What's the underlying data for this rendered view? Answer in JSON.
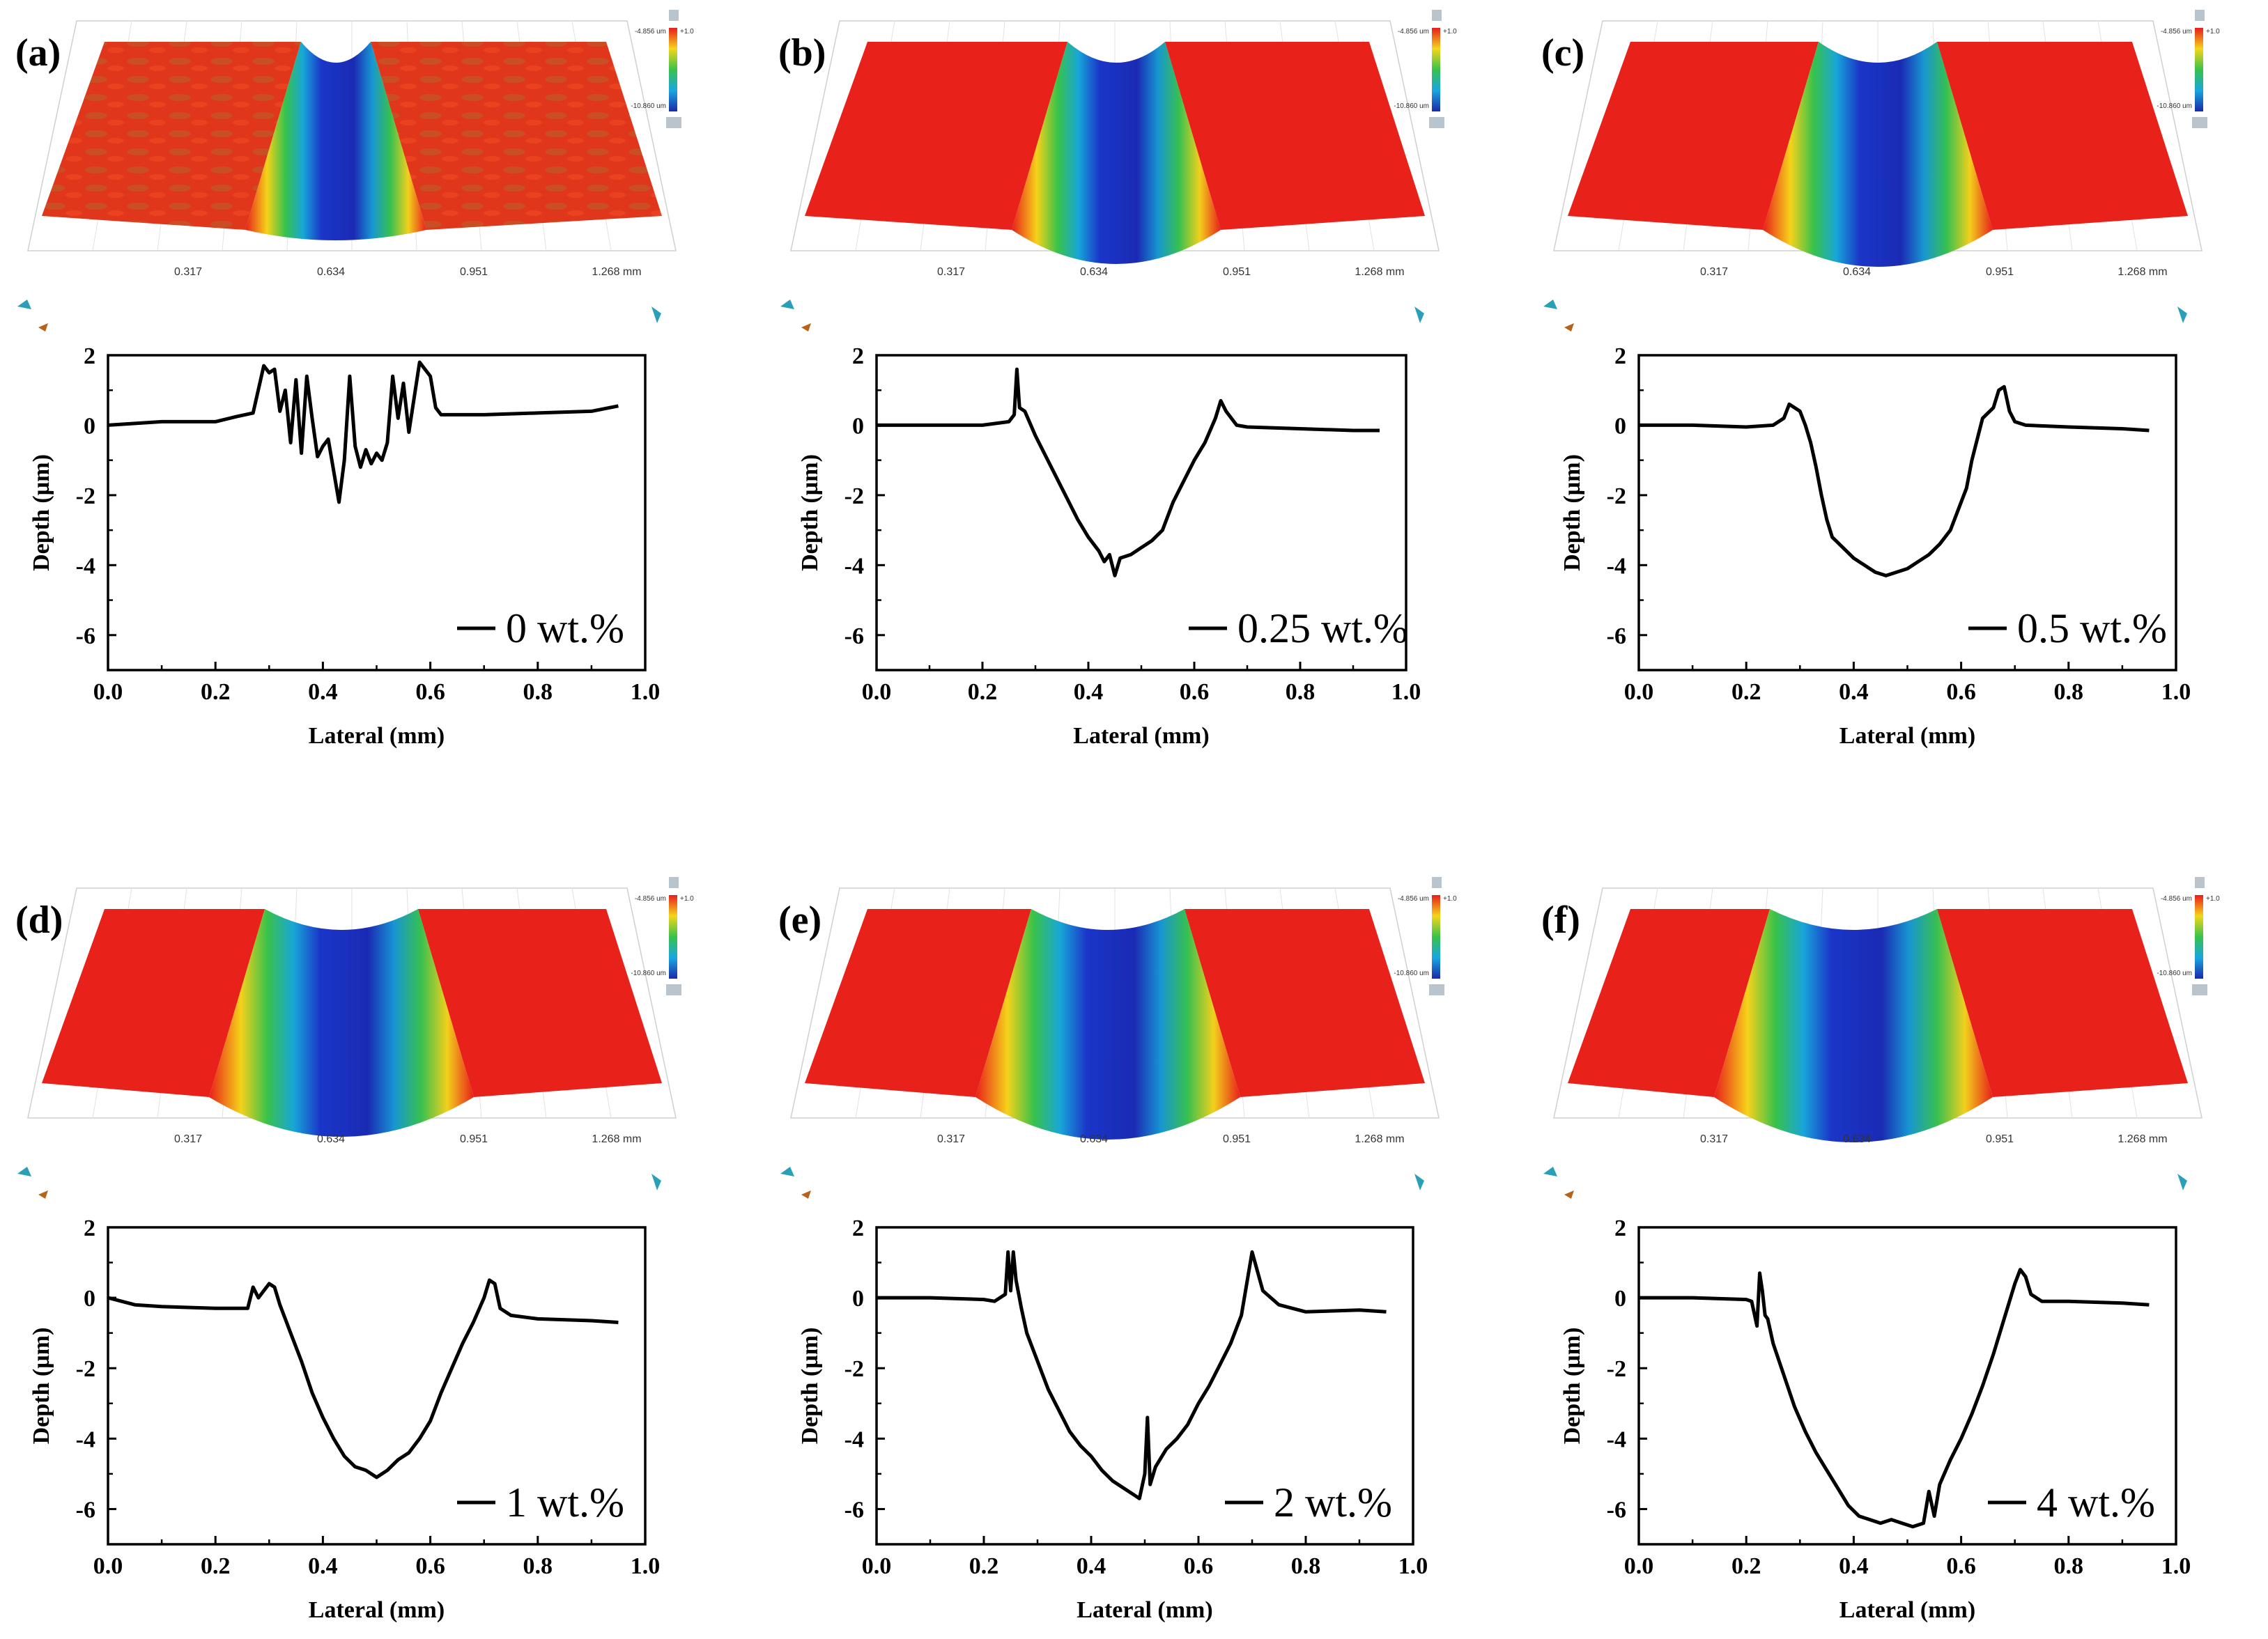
{
  "figure": {
    "iso_ticks": [
      "0.317",
      "0.634",
      "0.951",
      "1.268 mm"
    ],
    "colorbar": {
      "max_label": "-4.856 um",
      "min_label": "-10.860 um",
      "top_mark": "+1.0"
    }
  },
  "chart_data": [
    {
      "type": "line",
      "panel_label": "(a)",
      "xlabel": "Lateral (mm)",
      "ylabel": "Depth (µm)",
      "xlim": [
        0.0,
        1.0
      ],
      "ylim": [
        -7,
        2
      ],
      "xticks": [
        "0.0",
        "0.2",
        "0.4",
        "0.6",
        "0.8",
        "1.0"
      ],
      "yticks": [
        "2",
        "0",
        "-2",
        "-4",
        "-6"
      ],
      "series": [
        {
          "name": "0 wt.%",
          "x": [
            0.0,
            0.05,
            0.1,
            0.15,
            0.2,
            0.24,
            0.27,
            0.29,
            0.3,
            0.31,
            0.32,
            0.33,
            0.34,
            0.35,
            0.36,
            0.37,
            0.38,
            0.39,
            0.4,
            0.41,
            0.42,
            0.43,
            0.44,
            0.45,
            0.46,
            0.47,
            0.48,
            0.49,
            0.5,
            0.51,
            0.52,
            0.53,
            0.54,
            0.55,
            0.56,
            0.57,
            0.58,
            0.59,
            0.6,
            0.61,
            0.62,
            0.7,
            0.8,
            0.9,
            0.95
          ],
          "y": [
            0.0,
            0.05,
            0.1,
            0.1,
            0.1,
            0.25,
            0.35,
            1.7,
            1.5,
            1.6,
            0.4,
            1.0,
            -0.5,
            1.3,
            -0.8,
            1.4,
            0.2,
            -0.9,
            -0.6,
            -0.4,
            -1.3,
            -2.2,
            -1.0,
            1.4,
            -0.6,
            -1.2,
            -0.7,
            -1.1,
            -0.8,
            -1.0,
            -0.5,
            1.4,
            0.2,
            1.2,
            -0.2,
            0.8,
            1.8,
            1.6,
            1.4,
            0.5,
            0.3,
            0.3,
            0.35,
            0.4,
            0.55
          ]
        }
      ]
    },
    {
      "type": "line",
      "panel_label": "(b)",
      "xlabel": "Lateral (mm)",
      "ylabel": "Depth (µm)",
      "xlim": [
        0.0,
        1.0
      ],
      "ylim": [
        -7,
        2
      ],
      "xticks": [
        "0.0",
        "0.2",
        "0.4",
        "0.6",
        "0.8",
        "1.0"
      ],
      "yticks": [
        "2",
        "0",
        "-2",
        "-4",
        "-6"
      ],
      "series": [
        {
          "name": "0.25 wt.%",
          "x": [
            0.0,
            0.1,
            0.2,
            0.25,
            0.26,
            0.265,
            0.27,
            0.28,
            0.3,
            0.32,
            0.34,
            0.36,
            0.38,
            0.4,
            0.42,
            0.43,
            0.44,
            0.45,
            0.46,
            0.48,
            0.5,
            0.52,
            0.54,
            0.56,
            0.58,
            0.6,
            0.62,
            0.64,
            0.65,
            0.66,
            0.68,
            0.7,
            0.8,
            0.9,
            0.95
          ],
          "y": [
            0.0,
            0.0,
            0.0,
            0.1,
            0.3,
            1.6,
            0.5,
            0.4,
            -0.3,
            -0.9,
            -1.5,
            -2.1,
            -2.7,
            -3.2,
            -3.6,
            -3.9,
            -3.7,
            -4.3,
            -3.8,
            -3.7,
            -3.5,
            -3.3,
            -3.0,
            -2.2,
            -1.6,
            -1.0,
            -0.5,
            0.2,
            0.7,
            0.4,
            0.0,
            -0.05,
            -0.1,
            -0.15,
            -0.15
          ]
        }
      ]
    },
    {
      "type": "line",
      "panel_label": "(c)",
      "xlabel": "Lateral (mm)",
      "ylabel": "Depth (µm)",
      "xlim": [
        0.0,
        1.0
      ],
      "ylim": [
        -7,
        2
      ],
      "xticks": [
        "0.0",
        "0.2",
        "0.4",
        "0.6",
        "0.8",
        "1.0"
      ],
      "yticks": [
        "2",
        "0",
        "-2",
        "-4",
        "-6"
      ],
      "series": [
        {
          "name": "0.5 wt.%",
          "x": [
            0.0,
            0.1,
            0.2,
            0.25,
            0.27,
            0.28,
            0.3,
            0.31,
            0.32,
            0.33,
            0.34,
            0.35,
            0.36,
            0.38,
            0.4,
            0.42,
            0.44,
            0.46,
            0.48,
            0.5,
            0.52,
            0.54,
            0.56,
            0.58,
            0.6,
            0.61,
            0.62,
            0.63,
            0.64,
            0.66,
            0.67,
            0.68,
            0.69,
            0.7,
            0.72,
            0.8,
            0.9,
            0.95
          ],
          "y": [
            0.0,
            0.0,
            -0.05,
            0.0,
            0.2,
            0.6,
            0.4,
            0.0,
            -0.5,
            -1.2,
            -2.0,
            -2.7,
            -3.2,
            -3.5,
            -3.8,
            -4.0,
            -4.2,
            -4.3,
            -4.2,
            -4.1,
            -3.9,
            -3.7,
            -3.4,
            -3.0,
            -2.2,
            -1.8,
            -1.0,
            -0.4,
            0.2,
            0.5,
            1.0,
            1.1,
            0.4,
            0.1,
            0.0,
            -0.05,
            -0.1,
            -0.15
          ]
        }
      ]
    },
    {
      "type": "line",
      "panel_label": "(d)",
      "xlabel": "Lateral (mm)",
      "ylabel": "Depth (µm)",
      "xlim": [
        0.0,
        1.0
      ],
      "ylim": [
        -7,
        2
      ],
      "xticks": [
        "0.0",
        "0.2",
        "0.4",
        "0.6",
        "0.8",
        "1.0"
      ],
      "yticks": [
        "2",
        "0",
        "-2",
        "-4",
        "-6"
      ],
      "series": [
        {
          "name": "1 wt.%",
          "x": [
            0.0,
            0.05,
            0.1,
            0.2,
            0.26,
            0.27,
            0.28,
            0.3,
            0.31,
            0.32,
            0.33,
            0.34,
            0.36,
            0.38,
            0.4,
            0.42,
            0.44,
            0.46,
            0.48,
            0.5,
            0.52,
            0.54,
            0.56,
            0.58,
            0.6,
            0.62,
            0.64,
            0.66,
            0.68,
            0.7,
            0.71,
            0.72,
            0.73,
            0.75,
            0.8,
            0.9,
            0.95
          ],
          "y": [
            0.0,
            -0.2,
            -0.25,
            -0.3,
            -0.3,
            0.3,
            0.0,
            0.4,
            0.3,
            -0.2,
            -0.6,
            -1.0,
            -1.8,
            -2.7,
            -3.4,
            -4.0,
            -4.5,
            -4.8,
            -4.9,
            -5.1,
            -4.9,
            -4.6,
            -4.4,
            -4.0,
            -3.5,
            -2.7,
            -2.0,
            -1.3,
            -0.7,
            0.0,
            0.5,
            0.4,
            -0.3,
            -0.5,
            -0.6,
            -0.65,
            -0.7
          ]
        }
      ]
    },
    {
      "type": "line",
      "panel_label": "(e)",
      "xlabel": "Lateral (mm)",
      "ylabel": "Depth (µm)",
      "xlim": [
        0.0,
        1.0
      ],
      "ylim": [
        -7,
        2
      ],
      "xticks": [
        "0.0",
        "0.2",
        "0.4",
        "0.6",
        "0.8",
        "1.0"
      ],
      "yticks": [
        "2",
        "0",
        "-2",
        "-4",
        "-6"
      ],
      "series": [
        {
          "name": "2 wt.%",
          "x": [
            0.0,
            0.1,
            0.2,
            0.22,
            0.24,
            0.245,
            0.25,
            0.255,
            0.26,
            0.27,
            0.28,
            0.3,
            0.32,
            0.34,
            0.36,
            0.38,
            0.4,
            0.42,
            0.44,
            0.46,
            0.48,
            0.49,
            0.5,
            0.505,
            0.51,
            0.52,
            0.54,
            0.56,
            0.58,
            0.6,
            0.62,
            0.64,
            0.66,
            0.68,
            0.69,
            0.7,
            0.72,
            0.75,
            0.8,
            0.9,
            0.95
          ],
          "y": [
            0.0,
            0.0,
            -0.05,
            -0.1,
            0.1,
            1.3,
            0.2,
            1.3,
            0.5,
            -0.3,
            -1.0,
            -1.8,
            -2.6,
            -3.2,
            -3.8,
            -4.2,
            -4.5,
            -4.9,
            -5.2,
            -5.4,
            -5.6,
            -5.7,
            -5.0,
            -3.4,
            -5.3,
            -4.8,
            -4.3,
            -4.0,
            -3.6,
            -3.0,
            -2.5,
            -1.9,
            -1.3,
            -0.5,
            0.4,
            1.3,
            0.2,
            -0.2,
            -0.4,
            -0.35,
            -0.4
          ]
        }
      ]
    },
    {
      "type": "line",
      "panel_label": "(f)",
      "xlabel": "Lateral (mm)",
      "ylabel": "Depth (µm)",
      "xlim": [
        0.0,
        1.0
      ],
      "ylim": [
        -7,
        2
      ],
      "xticks": [
        "0.0",
        "0.2",
        "0.4",
        "0.6",
        "0.8",
        "1.0"
      ],
      "yticks": [
        "2",
        "0",
        "-2",
        "-4",
        "-6"
      ],
      "series": [
        {
          "name": "4 wt.%",
          "x": [
            0.0,
            0.1,
            0.2,
            0.21,
            0.22,
            0.225,
            0.23,
            0.235,
            0.24,
            0.25,
            0.27,
            0.29,
            0.31,
            0.33,
            0.35,
            0.37,
            0.39,
            0.41,
            0.43,
            0.45,
            0.47,
            0.49,
            0.51,
            0.53,
            0.54,
            0.55,
            0.56,
            0.58,
            0.6,
            0.62,
            0.64,
            0.66,
            0.68,
            0.7,
            0.71,
            0.72,
            0.73,
            0.75,
            0.8,
            0.9,
            0.95
          ],
          "y": [
            0.0,
            0.0,
            -0.05,
            -0.1,
            -0.8,
            0.7,
            0.2,
            -0.5,
            -0.6,
            -1.3,
            -2.2,
            -3.1,
            -3.8,
            -4.4,
            -4.9,
            -5.4,
            -5.9,
            -6.2,
            -6.3,
            -6.4,
            -6.3,
            -6.4,
            -6.5,
            -6.4,
            -5.5,
            -6.2,
            -5.3,
            -4.6,
            -4.0,
            -3.3,
            -2.5,
            -1.6,
            -0.6,
            0.4,
            0.8,
            0.6,
            0.1,
            -0.1,
            -0.1,
            -0.15,
            -0.2
          ]
        }
      ]
    }
  ]
}
